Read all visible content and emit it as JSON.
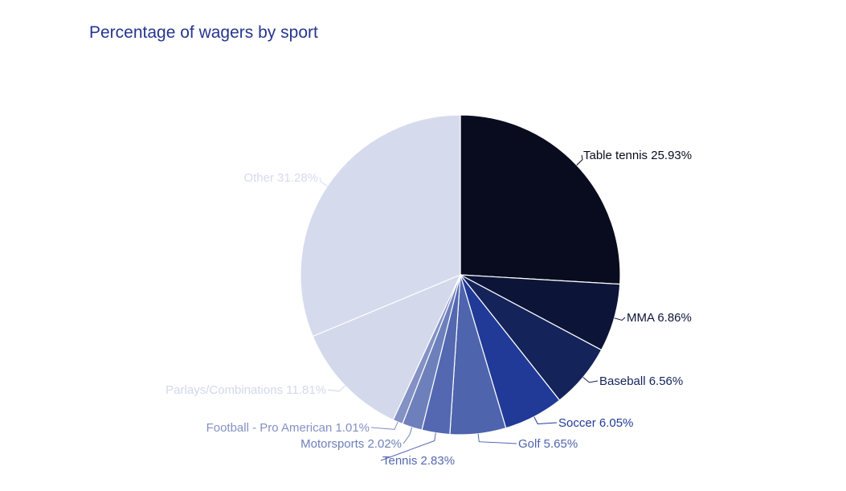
{
  "chart_data": {
    "type": "pie",
    "title": "Percentage of wagers by sport",
    "slices": [
      {
        "label": "Table tennis",
        "value": 25.93,
        "display": "25.93%",
        "color": "#080c1e",
        "label_color": "#080c1e"
      },
      {
        "label": "MMA",
        "value": 6.86,
        "display": "6.86%",
        "color": "#0c1538",
        "label_color": "#0c1538"
      },
      {
        "label": "Baseball",
        "value": 6.56,
        "display": "6.56%",
        "color": "#14235a",
        "label_color": "#14235a"
      },
      {
        "label": "Soccer",
        "value": 6.05,
        "display": "6.05%",
        "color": "#213a97",
        "label_color": "#213a97"
      },
      {
        "label": "Golf",
        "value": 5.65,
        "display": "5.65%",
        "color": "#4e64ad",
        "label_color": "#4e64ad"
      },
      {
        "label": "Tennis",
        "value": 2.83,
        "display": "2.83%",
        "color": "#5368b0",
        "label_color": "#5368b0"
      },
      {
        "label": "Motorsports",
        "value": 2.02,
        "display": "2.02%",
        "color": "#6e80bb",
        "label_color": "#6e80bb"
      },
      {
        "label": "Football - Pro American",
        "value": 1.01,
        "display": "1.01%",
        "color": "#8391c4",
        "label_color": "#8391c4"
      },
      {
        "label": "Parlays/Combinations",
        "value": 11.81,
        "display": "11.81%",
        "color": "#d3d8eb",
        "label_color": "#d3d8eb"
      },
      {
        "label": "Other",
        "value": 31.28,
        "display": "31.28%",
        "color": "#d6daed",
        "label_color": "#d6daed"
      }
    ],
    "start_angle_deg": 0,
    "direction": "clockwise",
    "legend": "none"
  }
}
